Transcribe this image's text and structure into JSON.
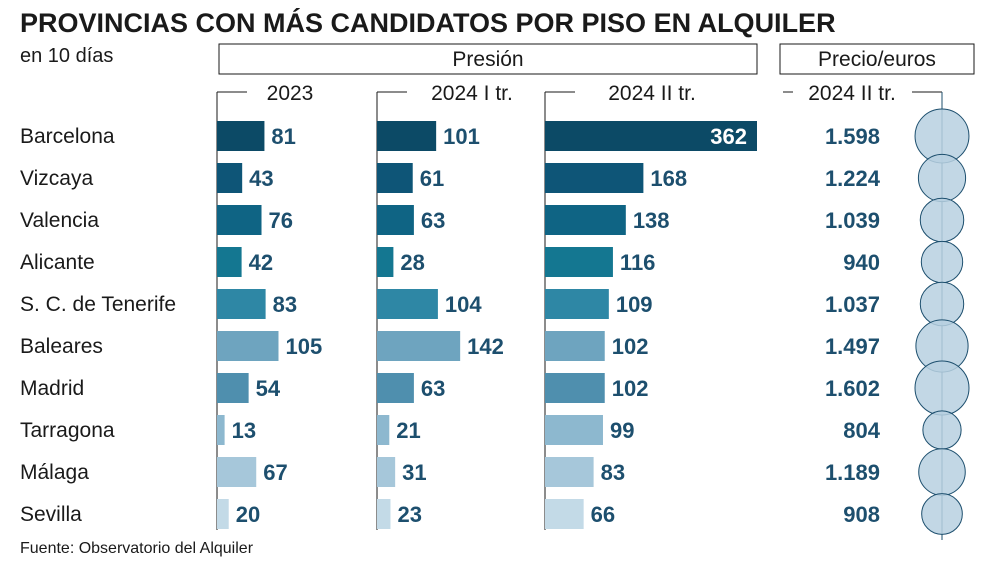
{
  "title": "PROVINCIAS CON MÁS CANDIDATOS POR PISO EN ALQUILER",
  "subtitle": "en 10 días",
  "group_headers": {
    "pressure": "Presión",
    "price": "Precio/euros"
  },
  "source": "Fuente: Observatorio del Alquiler",
  "chart_data": {
    "type": "bar",
    "categories": [
      "Barcelona",
      "Vizcaya",
      "Valencia",
      "Alicante",
      "S. C. de Tenerife",
      "Baleares",
      "Madrid",
      "Tarragona",
      "Málaga",
      "Sevilla"
    ],
    "series": [
      {
        "name": "2023",
        "values": [
          81,
          43,
          76,
          42,
          83,
          105,
          54,
          13,
          67,
          20
        ]
      },
      {
        "name": "2024 I tr.",
        "values": [
          101,
          61,
          63,
          28,
          104,
          142,
          63,
          21,
          31,
          23
        ]
      },
      {
        "name": "2024 II tr.",
        "values": [
          362,
          168,
          138,
          116,
          109,
          102,
          102,
          99,
          83,
          66
        ]
      }
    ],
    "price": {
      "name": "2024 II tr.",
      "labels": [
        "1.598",
        "1.224",
        "1.039",
        "940",
        "1.037",
        "1.497",
        "1.602",
        "804",
        "1.189",
        "908"
      ],
      "values": [
        1598,
        1224,
        1039,
        940,
        1037,
        1497,
        1602,
        804,
        1189,
        908
      ]
    },
    "colors": [
      "#0c4a66",
      "#0e5577",
      "#0f6484",
      "#147791",
      "#2e87a5",
      "#6ea4bf",
      "#4f8fae",
      "#8db8cf",
      "#a6c7da",
      "#c3dae7"
    ],
    "circle_fill": "#b7d0e0",
    "circle_stroke": "#1d4f6e"
  }
}
